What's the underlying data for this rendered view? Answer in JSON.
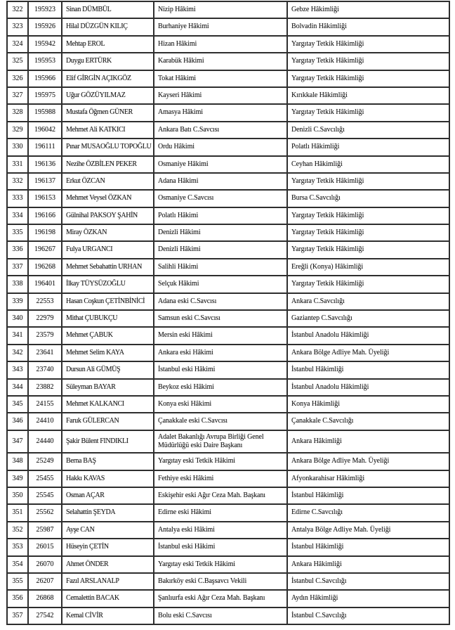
{
  "document": {
    "kind": "scanned judicial appointments list (Turkish)",
    "visible_row_range": "322-357"
  },
  "colors": {
    "background": "#ffffff",
    "border": "#2e2e2e",
    "text": "#1d1d1d"
  },
  "table": {
    "rows": [
      {
        "no": "322",
        "reg": "195923",
        "name": "Sinan DÜMBÜL",
        "from": "Nizip Hâkimi",
        "to": "Gebze Hâkimliği"
      },
      {
        "no": "323",
        "reg": "195926",
        "name": "Hilal DÜZGÜN KILIÇ",
        "from": "Burhaniye Hâkimi",
        "to": "Bolvadin Hâkimliği"
      },
      {
        "no": "324",
        "reg": "195942",
        "name": "Mehtap EROL",
        "from": "Hizan Hâkimi",
        "to": "Yargıtay Tetkik Hâkimliği"
      },
      {
        "no": "325",
        "reg": "195953",
        "name": "Duygu ERTÜRK",
        "from": "Karabük Hâkimi",
        "to": "Yargıtay Tetkik Hâkimliği"
      },
      {
        "no": "326",
        "reg": "195966",
        "name": "Elif GİRGİN AÇIKGÖZ",
        "from": "Tokat Hâkimi",
        "to": "Yargıtay Tetkik Hâkimliği"
      },
      {
        "no": "327",
        "reg": "195975",
        "name": "Uğur GÖZÜYILMAZ",
        "from": "Kayseri Hâkimi",
        "to": "Kırıkkale Hâkimliği"
      },
      {
        "no": "328",
        "reg": "195988",
        "name": "Mustafa Öğmen GÜNER",
        "from": "Amasya Hâkimi",
        "to": "Yargıtay Tetkik Hâkimliği"
      },
      {
        "no": "329",
        "reg": "196042",
        "name": "Mehmet Ali KATKICI",
        "from": "Ankara Batı C.Savcısı",
        "to": "Denizli C.Savcılığı"
      },
      {
        "no": "330",
        "reg": "196111",
        "name": "Pınar MUSAOĞLU TOPOĞLU",
        "from": "Ordu Hâkimi",
        "to": "Polatlı Hâkimliği"
      },
      {
        "no": "331",
        "reg": "196136",
        "name": "Nezihe ÖZBİLEN PEKER",
        "from": "Osmaniye Hâkimi",
        "to": "Ceyhan Hâkimliği"
      },
      {
        "no": "332",
        "reg": "196137",
        "name": "Erkut ÖZCAN",
        "from": "Adana Hâkimi",
        "to": "Yargıtay Tetkik Hâkimliği"
      },
      {
        "no": "333",
        "reg": "196153",
        "name": "Mehmet Veysel ÖZKAN",
        "from": "Osmaniye C.Savcısı",
        "to": "Bursa C.Savcılığı"
      },
      {
        "no": "334",
        "reg": "196166",
        "name": "Gülnihal PAKSOY ŞAHİN",
        "from": "Polatlı Hâkimi",
        "to": "Yargıtay Tetkik Hâkimliği"
      },
      {
        "no": "335",
        "reg": "196198",
        "name": "Miray ÖZKAN",
        "from": "Denizli Hâkimi",
        "to": "Yargıtay Tetkik Hâkimliği"
      },
      {
        "no": "336",
        "reg": "196267",
        "name": "Fulya URGANCI",
        "from": "Denizli Hâkimi",
        "to": "Yargıtay Tetkik Hâkimliği"
      },
      {
        "no": "337",
        "reg": "196268",
        "name": "Mehmet Sebahattin URHAN",
        "from": "Salihli Hâkimi",
        "to": "Ereğli (Konya) Hâkimliği"
      },
      {
        "no": "338",
        "reg": "196401",
        "name": "İlkay TÜYSÜZOĞLU",
        "from": "Selçuk Hâkimi",
        "to": "Yargıtay Tetkik Hâkimliği"
      },
      {
        "no": "339",
        "reg": "22553",
        "name": "Hasan Coşkun ÇETİNBİNİCİ",
        "from": "Adana eski C.Savcısı",
        "to": "Ankara C.Savcılığı"
      },
      {
        "no": "340",
        "reg": "22979",
        "name": "Mithat ÇUBUKÇU",
        "from": "Samsun eski C.Savcısı",
        "to": "Gaziantep C.Savcılığı"
      },
      {
        "no": "341",
        "reg": "23579",
        "name": "Mehmet ÇABUK",
        "from": "Mersin eski Hâkimi",
        "to": "İstanbul Anadolu Hâkimliği"
      },
      {
        "no": "342",
        "reg": "23641",
        "name": "Mehmet Selim KAYA",
        "from": "Ankara eski Hâkimi",
        "to": "Ankara Bölge Adliye Mah. Üyeliği"
      },
      {
        "no": "343",
        "reg": "23740",
        "name": "Dursun Ali GÜMÜŞ",
        "from": "İstanbul eski Hâkimi",
        "to": "İstanbul Hâkimliği"
      },
      {
        "no": "344",
        "reg": "23882",
        "name": "Süleyman BAYAR",
        "from": "Beykoz eski Hâkimi",
        "to": "İstanbul Anadolu Hâkimliği"
      },
      {
        "no": "345",
        "reg": "24155",
        "name": "Mehmet KALKANCI",
        "from": "Konya eski Hâkimi",
        "to": "Konya Hâkimliği"
      },
      {
        "no": "346",
        "reg": "24410",
        "name": "Faruk GÜLERCAN",
        "from": "Çanakkale eski C.Savcısı",
        "to": "Çanakkale C.Savcılığı"
      },
      {
        "no": "347",
        "reg": "24440",
        "name": "Şakir Bülent FINDIKLI",
        "from": "Adalet Bakanlığı Avrupa Birliği Genel Müdürlüğü eski Daire Başkanı",
        "to": "Ankara Hâkimliği"
      },
      {
        "no": "348",
        "reg": "25249",
        "name": "Berna BAŞ",
        "from": "Yargıtay eski Tetkik Hâkimi",
        "to": "Ankara Bölge Adliye Mah. Üyeliği"
      },
      {
        "no": "349",
        "reg": "25455",
        "name": "Hakkı KAVAS",
        "from": "Fethiye eski Hâkimi",
        "to": "Afyonkarahisar Hâkimliği"
      },
      {
        "no": "350",
        "reg": "25545",
        "name": "Osman AÇAR",
        "from": "Eskişehir eski Ağır Ceza Mah. Başkanı",
        "to": "İstanbul Hâkimliği"
      },
      {
        "no": "351",
        "reg": "25562",
        "name": "Selahattin ŞEYDA",
        "from": "Edirne eski Hâkimi",
        "to": "Edirne C.Savcılığı"
      },
      {
        "no": "352",
        "reg": "25987",
        "name": "Ayşe CAN",
        "from": "Antalya eski Hâkimi",
        "to": "Antalya Bölge Adliye Mah. Üyeliği"
      },
      {
        "no": "353",
        "reg": "26015",
        "name": "Hüseyin ÇETİN",
        "from": "İstanbul eski Hâkimi",
        "to": "İstanbul Hâkimliği"
      },
      {
        "no": "354",
        "reg": "26070",
        "name": "Ahmet ÖNDER",
        "from": "Yargıtay eski Tetkik Hâkimi",
        "to": "Ankara Hâkimliği"
      },
      {
        "no": "355",
        "reg": "26207",
        "name": "Fazıl ARSLANALP",
        "from": "Bakırköy eski C.Başsavcı Vekili",
        "to": "İstanbul C.Savcılığı"
      },
      {
        "no": "356",
        "reg": "26868",
        "name": "Cemalettin BACAK",
        "from": "Şanlıurfa eski Ağır Ceza Mah. Başkanı",
        "to": "Aydın Hâkimliği"
      },
      {
        "no": "357",
        "reg": "27542",
        "name": "Kemal CİVİR",
        "from": "Bolu eski C.Savcısı",
        "to": "İstanbul C.Savcılığı"
      }
    ]
  }
}
